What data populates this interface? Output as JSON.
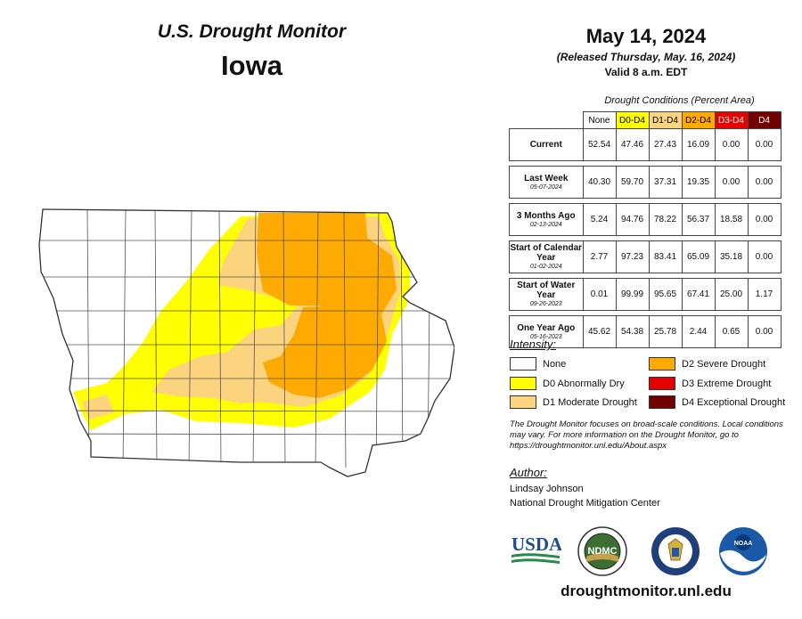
{
  "header": {
    "monitor_title": "U.S. Drought Monitor",
    "state": "Iowa",
    "date": "May 14, 2024",
    "released": "(Released Thursday, May. 16, 2024)",
    "valid": "Valid 8 a.m. EDT"
  },
  "table": {
    "caption": "Drought Conditions (Percent Area)",
    "columns": [
      {
        "label": "None",
        "bg": "#ffffff",
        "fg": "#000000"
      },
      {
        "label": "D0-D4",
        "bg": "#ffff00",
        "fg": "#000000"
      },
      {
        "label": "D1-D4",
        "bg": "#fcd37f",
        "fg": "#000000"
      },
      {
        "label": "D2-D4",
        "bg": "#ffaa00",
        "fg": "#000000"
      },
      {
        "label": "D3-D4",
        "bg": "#e60000",
        "fg": "#ffffff"
      },
      {
        "label": "D4",
        "bg": "#730000",
        "fg": "#ffffff"
      }
    ],
    "rows": [
      {
        "label": "Current",
        "date": "",
        "values": [
          "52.54",
          "47.46",
          "27.43",
          "16.09",
          "0.00",
          "0.00"
        ]
      },
      {
        "label": "Last Week",
        "date": "05-07-2024",
        "values": [
          "40.30",
          "59.70",
          "37.31",
          "19.35",
          "0.00",
          "0.00"
        ]
      },
      {
        "label": "3 Months Ago",
        "date": "02-13-2024",
        "values": [
          "5.24",
          "94.76",
          "78.22",
          "56.37",
          "18.58",
          "0.00"
        ]
      },
      {
        "label": "Start of Calendar Year",
        "date": "01-02-2024",
        "values": [
          "2.77",
          "97.23",
          "83.41",
          "65.09",
          "35.18",
          "0.00"
        ]
      },
      {
        "label": "Start of Water Year",
        "date": "09-26-2023",
        "values": [
          "0.01",
          "99.99",
          "95.65",
          "67.41",
          "25.00",
          "1.17"
        ]
      },
      {
        "label": "One Year Ago",
        "date": "05-16-2023",
        "values": [
          "45.62",
          "54.38",
          "25.78",
          "2.44",
          "0.65",
          "0.00"
        ]
      }
    ]
  },
  "legend": {
    "title": "Intensity:",
    "items": [
      {
        "label": "None",
        "color": "#ffffff"
      },
      {
        "label": "D0 Abnormally Dry",
        "color": "#ffff00"
      },
      {
        "label": "D1 Moderate Drought",
        "color": "#fcd37f"
      },
      {
        "label": "D2 Severe Drought",
        "color": "#ffaa00"
      },
      {
        "label": "D3 Extreme Drought",
        "color": "#e60000"
      },
      {
        "label": "D4 Exceptional Drought",
        "color": "#730000"
      }
    ]
  },
  "note": "The Drought Monitor focuses on broad-scale conditions. Local conditions may vary. For more information on the Drought Monitor, go to https://droughtmonitor.unl.edu/About.aspx",
  "author": {
    "label": "Author:",
    "name": "Lindsay Johnson",
    "org": "National Drought Mitigation Center"
  },
  "logos": {
    "usda": "USDA",
    "ndmc": "NDMC",
    "noaa": "NOAA"
  },
  "website": "droughtmonitor.unl.edu",
  "map_colors": {
    "none": "#ffffff",
    "d0": "#ffff00",
    "d1": "#fcd37f",
    "d2": "#ffaa00",
    "border": "#555555"
  }
}
